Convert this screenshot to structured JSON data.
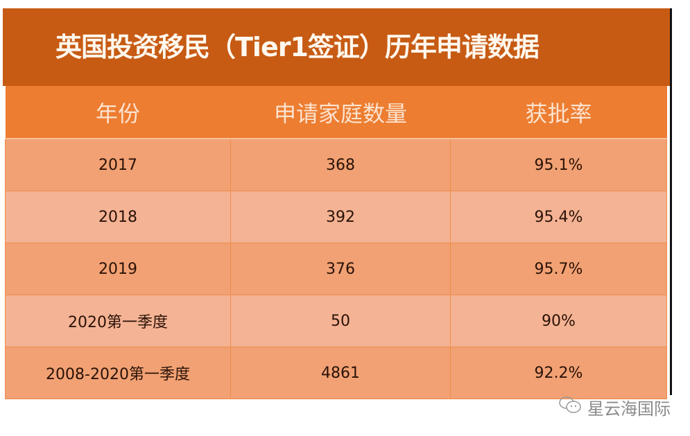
{
  "title": "英国投资移民（Tier1签证）历年申请数据",
  "table": {
    "headers": [
      "年份",
      "申请家庭数量",
      "获批率"
    ],
    "rows": [
      [
        "2017",
        "368",
        "95.1%"
      ],
      [
        "2018",
        "392",
        "95.4%"
      ],
      [
        "2019",
        "376",
        "95.7%"
      ],
      [
        "2020第一季度",
        "50",
        "90%"
      ],
      [
        "2008-2020第一季度",
        "4861",
        "92.2%"
      ]
    ]
  },
  "watermark": {
    "icon": "wechat-icon",
    "text": "星云海国际"
  },
  "colors": {
    "title_bg": "#C75B14",
    "header_bg": "#ED7D31",
    "row_odd": "#F1A173",
    "row_even": "#F4B394"
  }
}
